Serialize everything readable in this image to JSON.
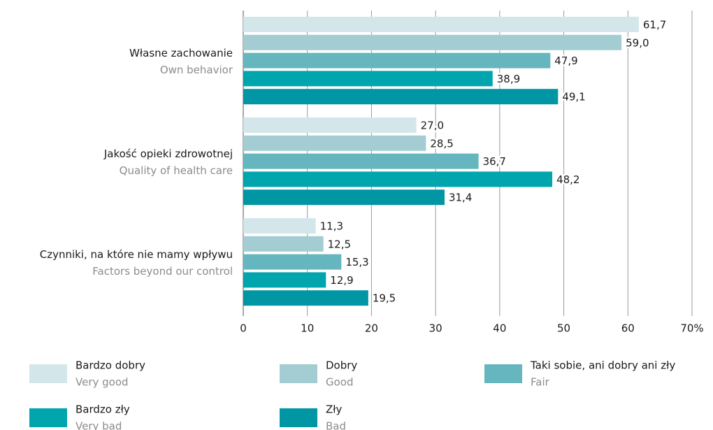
{
  "chart_data": {
    "type": "bar",
    "orientation": "horizontal",
    "categories": [
      {
        "label": "Własne zachowanie",
        "sublabel": "Own behavior"
      },
      {
        "label": "Jakość opieki zdrowotnej",
        "sublabel": "Quality of health care"
      },
      {
        "label": "Czynniki, na które nie mamy wpływu",
        "sublabel": "Factors beyond our control"
      }
    ],
    "series": [
      {
        "name": "Bardzo dobry",
        "subname": "Very good",
        "color": "#d3e6ea",
        "values": [
          61.7,
          27.0,
          11.3
        ],
        "value_labels": [
          "61,7",
          "27,0",
          "11,3"
        ]
      },
      {
        "name": "Dobry",
        "subname": "Good",
        "color": "#a3cdd3",
        "values": [
          59.0,
          28.5,
          12.5
        ],
        "value_labels": [
          "59,0",
          "28,5",
          "12,5"
        ]
      },
      {
        "name": "Taki sobie, ani dobry ani zły",
        "subname": "Fair",
        "color": "#66b6bf",
        "values": [
          47.9,
          36.7,
          15.3
        ],
        "value_labels": [
          "47,9",
          "36,7",
          "15,3"
        ]
      },
      {
        "name": "Bardzo zły",
        "subname": "Very bad",
        "color": "#00a5ad",
        "values": [
          38.9,
          48.2,
          12.9
        ],
        "value_labels": [
          "38,9",
          "48,2",
          "12,9"
        ]
      },
      {
        "name": "Zły",
        "subname": "Bad",
        "color": "#0096a3",
        "values": [
          49.1,
          31.4,
          19.5
        ],
        "value_labels": [
          "49,1",
          "31,4",
          "19,5"
        ]
      }
    ],
    "xlim": [
      0,
      70
    ],
    "xticks": [
      0,
      10,
      20,
      30,
      40,
      50,
      60,
      {
        "value": 70,
        "label": "70%"
      }
    ],
    "grid": true
  }
}
